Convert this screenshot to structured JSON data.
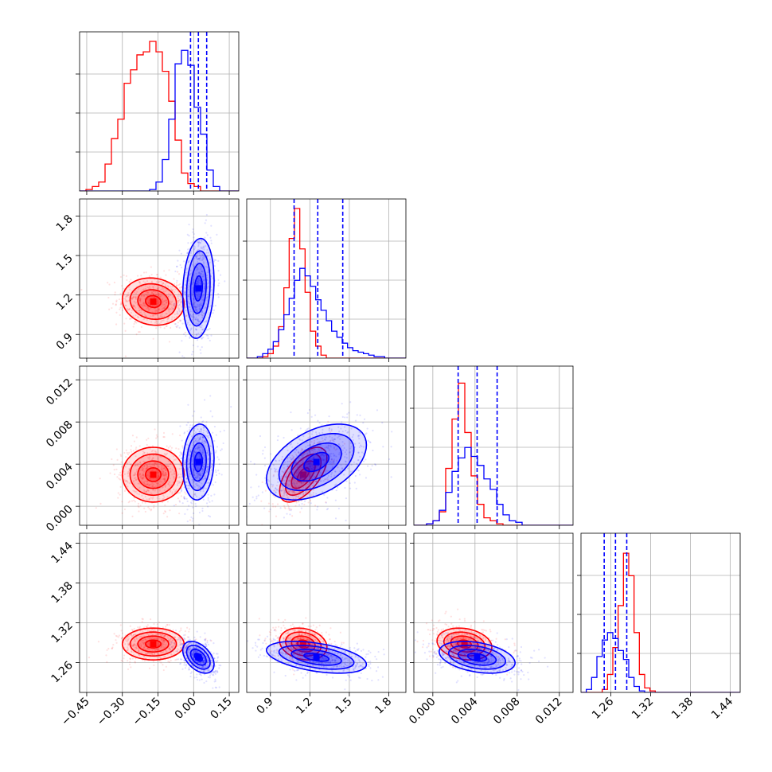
{
  "chart_data": {
    "type": "corner",
    "parameters": [
      {
        "lim": [
          -0.48,
          0.19
        ],
        "ticks": [
          -0.45,
          -0.3,
          -0.15,
          0.0,
          0.15
        ],
        "tick_labels": [
          "−0.45",
          "−0.30",
          "−0.15",
          "0.00",
          "0.15"
        ]
      },
      {
        "lim": [
          0.72,
          1.93
        ],
        "ticks": [
          0.9,
          1.2,
          1.5,
          1.8
        ],
        "tick_labels": [
          "0.9",
          "1.2",
          "1.5",
          "1.8"
        ]
      },
      {
        "lim": [
          -0.0018,
          0.0133
        ],
        "ticks": [
          0.0,
          0.004,
          0.008,
          0.012
        ],
        "tick_labels": [
          "0.000",
          "0.004",
          "0.008",
          "0.012"
        ]
      },
      {
        "lim": [
          1.215,
          1.455
        ],
        "ticks": [
          1.26,
          1.32,
          1.38,
          1.44
        ],
        "tick_labels": [
          "1.26",
          "1.32",
          "1.38",
          "1.44"
        ]
      }
    ],
    "series": [
      {
        "color": "#ff0000",
        "means": [
          -0.17,
          1.15,
          0.003,
          1.288
        ],
        "sds": [
          0.065,
          0.09,
          0.0013,
          0.012
        ]
      },
      {
        "color": "#0000ff",
        "means": [
          0.02,
          1.25,
          0.0042,
          1.268
        ],
        "sds": [
          0.033,
          0.19,
          0.0018,
          0.012
        ]
      }
    ],
    "quantile_lines": {
      "color": "#0000ff",
      "values": [
        [
          -0.013,
          0.02,
          0.055
        ],
        [
          1.08,
          1.26,
          1.45
        ],
        [
          0.0024,
          0.0042,
          0.0061
        ],
        [
          1.25,
          1.267,
          1.284
        ]
      ]
    },
    "histograms": [
      {
        "bins": [
          -0.48,
          0.19,
          25
        ],
        "red": [
          0.0,
          0.01,
          0.03,
          0.06,
          0.18,
          0.35,
          0.48,
          0.72,
          0.81,
          0.91,
          0.93,
          1.0,
          0.93,
          0.8,
          0.6,
          0.34,
          0.12,
          0.05,
          0.03,
          0.0,
          0.0,
          0.0,
          0.0,
          0.0,
          0.0
        ],
        "blue": [
          0.0,
          0.0,
          0.0,
          0.0,
          0.0,
          0.0,
          0.0,
          0.0,
          0.0,
          0.0,
          0.0,
          0.01,
          0.06,
          0.21,
          0.48,
          0.85,
          0.94,
          0.84,
          0.56,
          0.38,
          0.14,
          0.03,
          0.0,
          0.0,
          0.0
        ]
      },
      {
        "bins": [
          0.72,
          1.93,
          30
        ],
        "red": [
          0.0,
          0.0,
          0.0,
          0.01,
          0.03,
          0.08,
          0.21,
          0.47,
          0.8,
          1.0,
          0.73,
          0.44,
          0.18,
          0.08,
          0.02,
          0.0,
          0.0,
          0.0,
          0.0,
          0.0,
          0.0,
          0.0,
          0.0,
          0.0,
          0.0,
          0.0,
          0.0,
          0.0,
          0.0,
          0.0
        ],
        "blue": [
          0.0,
          0.0,
          0.01,
          0.03,
          0.06,
          0.11,
          0.19,
          0.29,
          0.4,
          0.52,
          0.6,
          0.55,
          0.48,
          0.39,
          0.32,
          0.25,
          0.18,
          0.14,
          0.1,
          0.07,
          0.05,
          0.04,
          0.03,
          0.02,
          0.01,
          0.01,
          0.0,
          0.0,
          0.0,
          0.0
        ]
      },
      {
        "bins": [
          -0.0018,
          0.0133,
          25
        ],
        "red": [
          0.0,
          0.0,
          0.01,
          0.03,
          0.09,
          0.38,
          0.71,
          0.95,
          0.62,
          0.33,
          0.14,
          0.05,
          0.03,
          0.01,
          0.0,
          0.0,
          0.0,
          0.0,
          0.0,
          0.0,
          0.0,
          0.0,
          0.0,
          0.0,
          0.0
        ],
        "blue": [
          0.0,
          0.0,
          0.01,
          0.03,
          0.1,
          0.22,
          0.36,
          0.45,
          0.52,
          0.46,
          0.4,
          0.31,
          0.24,
          0.14,
          0.07,
          0.03,
          0.02,
          0.0,
          0.0,
          0.0,
          0.0,
          0.0,
          0.0,
          0.0,
          0.0
        ]
      },
      {
        "bins": [
          1.215,
          1.455,
          30
        ],
        "red": [
          0.0,
          0.0,
          0.0,
          0.0,
          0.02,
          0.12,
          0.3,
          0.58,
          0.93,
          0.78,
          0.4,
          0.12,
          0.03,
          0.01,
          0.0,
          0.0,
          0.0,
          0.0,
          0.0,
          0.0,
          0.0,
          0.0,
          0.0,
          0.0,
          0.0,
          0.0,
          0.0,
          0.0,
          0.0,
          0.0
        ],
        "blue": [
          0.0,
          0.02,
          0.1,
          0.24,
          0.35,
          0.4,
          0.36,
          0.28,
          0.22,
          0.1,
          0.04,
          0.01,
          0.0,
          0.0,
          0.0,
          0.0,
          0.0,
          0.0,
          0.0,
          0.0,
          0.0,
          0.0,
          0.0,
          0.0,
          0.0,
          0.0,
          0.0,
          0.0,
          0.0,
          0.0
        ]
      }
    ],
    "correlations": {
      "red": {
        "0-1": -0.1,
        "0-2": 0.0,
        "0-3": 0.0,
        "1-2": 0.6,
        "1-3": -0.2,
        "2-3": -0.2
      },
      "blue": {
        "0-1": 0.15,
        "0-2": 0.1,
        "0-3": -0.45,
        "1-2": 0.45,
        "1-3": -0.45,
        "2-3": -0.35
      }
    },
    "grid": true
  }
}
